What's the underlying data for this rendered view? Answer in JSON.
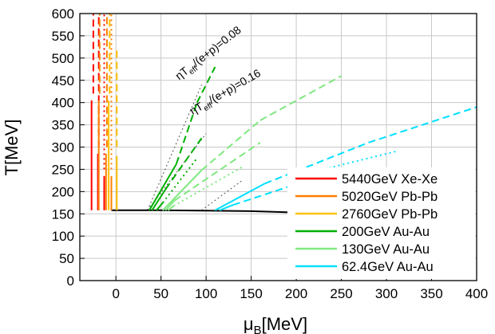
{
  "chart_data": {
    "type": "line",
    "xlabel_main": "μ",
    "xlabel_sub": "B",
    "xlabel_unit": "[MeV]",
    "ylabel": "T[MeV]",
    "xlim": [
      -40,
      400
    ],
    "ylim": [
      0,
      600
    ],
    "x_ticks": [
      0,
      50,
      100,
      150,
      200,
      250,
      300,
      350,
      400
    ],
    "y_ticks": [
      0,
      50,
      100,
      150,
      200,
      250,
      300,
      350,
      400,
      450,
      500,
      550,
      600
    ],
    "grid": true,
    "legend_position": "bottom-right",
    "annotations": [
      {
        "eta": "η",
        "T": "T",
        "sub": "eff",
        "rest": "/(e+p)=0.08",
        "x": 70,
        "y": 450,
        "angle_deg": -38
      },
      {
        "eta": "η",
        "T": "T",
        "sub": "eff",
        "rest": "/(e+p)=0.16",
        "x": 85,
        "y": 372,
        "angle_deg": -30
      }
    ],
    "series": [
      {
        "name": "5440GeV Xe-Xe",
        "color": "#ff0000",
        "tracks": [
          {
            "style": "solid",
            "points": [
              [
                -27,
                158
              ],
              [
                -27,
                405
              ]
            ]
          },
          {
            "style": "dashed",
            "points": [
              [
                -25,
                420
              ],
              [
                -25,
                600
              ]
            ]
          },
          {
            "style": "solid",
            "points": [
              [
                -20,
                158
              ],
              [
                -20,
                285
              ]
            ]
          },
          {
            "style": "dashed",
            "points": [
              [
                -19,
                300
              ],
              [
                -19,
                600
              ]
            ]
          },
          {
            "style": "solid",
            "points": [
              [
                -13,
                158
              ],
              [
                -13,
                235
              ]
            ]
          },
          {
            "style": "dotted",
            "points": [
              [
                -13,
                250
              ],
              [
                -13,
                600
              ]
            ]
          }
        ]
      },
      {
        "name": "5020GeV Pb-Pb",
        "color": "#ff7f00",
        "tracks": [
          {
            "style": "solid",
            "points": [
              [
                -19,
                158
              ],
              [
                -19,
                405
              ]
            ]
          },
          {
            "style": "dashed",
            "points": [
              [
                -18,
                420
              ],
              [
                -18,
                600
              ]
            ]
          },
          {
            "style": "solid",
            "points": [
              [
                -11,
                158
              ],
              [
                -11,
                285
              ]
            ]
          },
          {
            "style": "dashed",
            "points": [
              [
                -10,
                300
              ],
              [
                -10,
                600
              ]
            ]
          },
          {
            "style": "solid",
            "points": [
              [
                -5,
                158
              ],
              [
                -5,
                235
              ]
            ]
          },
          {
            "style": "dotted",
            "points": [
              [
                -5,
                250
              ],
              [
                -5,
                600
              ]
            ]
          }
        ]
      },
      {
        "name": "2760GeV Pb-Pb",
        "color": "#ffc000",
        "tracks": [
          {
            "style": "solid",
            "points": [
              [
                -8,
                158
              ],
              [
                -8,
                405
              ]
            ]
          },
          {
            "style": "dashed",
            "points": [
              [
                -7,
                420
              ],
              [
                -7,
                600
              ]
            ]
          },
          {
            "style": "solid",
            "points": [
              [
                1,
                158
              ],
              [
                1,
                280
              ]
            ]
          },
          {
            "style": "dashed",
            "points": [
              [
                1,
                300
              ],
              [
                1,
                520
              ]
            ]
          }
        ]
      },
      {
        "name": "200GeV Au-Au",
        "color": "#00b000",
        "tracks": [
          {
            "style": "solid",
            "points": [
              [
                37,
                158
              ],
              [
                67,
                262
              ]
            ]
          },
          {
            "style": "dashed",
            "points": [
              [
                67,
                262
              ],
              [
                90,
                400
              ]
            ]
          },
          {
            "style": "dashed",
            "points": [
              [
                90,
                400
              ],
              [
                110,
                480
              ]
            ]
          },
          {
            "style": "solid",
            "points": [
              [
                40,
                158
              ],
              [
                55,
                205
              ]
            ]
          },
          {
            "style": "dashed",
            "points": [
              [
                55,
                205
              ],
              [
                95,
                320
              ]
            ]
          },
          {
            "style": "solid",
            "points": [
              [
                45,
                158
              ],
              [
                52,
                175
              ]
            ]
          },
          {
            "style": "dotted",
            "points": [
              [
                52,
                175
              ],
              [
                90,
                275
              ]
            ]
          }
        ]
      },
      {
        "name": "130GeV Au-Au",
        "color": "#80e880",
        "tracks": [
          {
            "style": "solid",
            "points": [
              [
                52,
                158
              ],
              [
                95,
                248
              ]
            ]
          },
          {
            "style": "dashed",
            "points": [
              [
                95,
                248
              ],
              [
                160,
                360
              ]
            ]
          },
          {
            "style": "dashed",
            "points": [
              [
                160,
                360
              ],
              [
                250,
                460
              ]
            ]
          },
          {
            "style": "solid",
            "points": [
              [
                55,
                158
              ],
              [
                65,
                180
              ]
            ]
          },
          {
            "style": "dashed",
            "points": [
              [
                65,
                180
              ],
              [
                160,
                310
              ]
            ]
          },
          {
            "style": "solid",
            "points": [
              [
                58,
                158
              ],
              [
                64,
                168
              ]
            ]
          },
          {
            "style": "dotted",
            "points": [
              [
                64,
                168
              ],
              [
                140,
                255
              ]
            ]
          }
        ]
      },
      {
        "name": "62.4GeV Au-Au",
        "color": "#00e0ff",
        "tracks": [
          {
            "style": "solid",
            "points": [
              [
                110,
                158
              ],
              [
                165,
                218
              ]
            ]
          },
          {
            "style": "dashed",
            "points": [
              [
                165,
                218
              ],
              [
                280,
                310
              ]
            ]
          },
          {
            "style": "dashed",
            "points": [
              [
                280,
                310
              ],
              [
                400,
                390
              ]
            ]
          },
          {
            "style": "solid",
            "points": [
              [
                115,
                158
              ],
              [
                130,
                170
              ]
            ]
          },
          {
            "style": "dashed",
            "points": [
              [
                130,
                170
              ],
              [
                250,
                250
              ]
            ]
          },
          {
            "style": "dotted",
            "points": [
              [
                200,
                235
              ],
              [
                310,
                290
              ]
            ]
          }
        ]
      }
    ],
    "transition_line": {
      "color": "#000000",
      "points": [
        [
          -5,
          158
        ],
        [
          50,
          158
        ],
        [
          100,
          157
        ],
        [
          150,
          156
        ],
        [
          200,
          153
        ]
      ]
    },
    "guide_lines": {
      "color": "#555555",
      "lines": [
        {
          "points": [
            [
              35,
              158
            ],
            [
              95,
              440
            ]
          ]
        },
        {
          "points": [
            [
              35,
              158
            ],
            [
              100,
              330
            ]
          ]
        },
        {
          "points": [
            [
              95,
              158
            ],
            [
              140,
              225
            ]
          ]
        }
      ]
    }
  }
}
